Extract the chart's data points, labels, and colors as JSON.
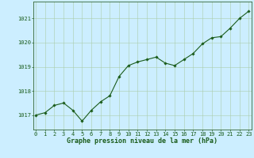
{
  "x": [
    0,
    1,
    2,
    3,
    4,
    5,
    6,
    7,
    8,
    9,
    10,
    11,
    12,
    13,
    14,
    15,
    16,
    17,
    18,
    19,
    20,
    21,
    22,
    23
  ],
  "y": [
    1017.0,
    1017.1,
    1017.4,
    1017.5,
    1017.2,
    1016.75,
    1017.2,
    1017.55,
    1017.8,
    1018.6,
    1019.05,
    1019.2,
    1019.3,
    1019.4,
    1019.15,
    1019.05,
    1019.3,
    1019.55,
    1019.95,
    1020.2,
    1020.25,
    1020.6,
    1021.0,
    1021.3
  ],
  "line_color": "#1a5c1a",
  "marker": "D",
  "marker_size": 1.8,
  "linewidth": 0.8,
  "bg_color": "#cceeff",
  "grid_color": "#aaccaa",
  "xlabel": "Graphe pression niveau de la mer (hPa)",
  "xlabel_color": "#1a5c1a",
  "xlabel_fontsize": 6,
  "yticks": [
    1017,
    1018,
    1019,
    1020,
    1021
  ],
  "xticks": [
    0,
    1,
    2,
    3,
    4,
    5,
    6,
    7,
    8,
    9,
    10,
    11,
    12,
    13,
    14,
    15,
    16,
    17,
    18,
    19,
    20,
    21,
    22,
    23
  ],
  "ylim": [
    1016.4,
    1021.7
  ],
  "xlim": [
    -0.3,
    23.3
  ],
  "tick_color": "#1a5c1a",
  "tick_fontsize": 5.0,
  "spine_color": "#336633"
}
